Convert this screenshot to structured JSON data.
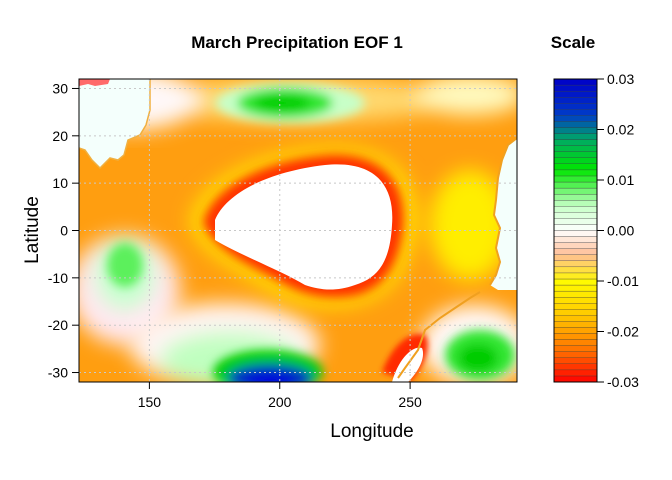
{
  "chart_data": [
    {
      "type": "heatmap",
      "title": "March Precipitation EOF 1",
      "xlabel": "Longitude",
      "ylabel": "Latitude",
      "xlim": [
        123,
        291
      ],
      "ylim": [
        -32,
        32
      ],
      "x_ticks": [
        150,
        200,
        250
      ],
      "y_ticks": [
        -30,
        -20,
        -10,
        0,
        10,
        20,
        30
      ],
      "grid": true,
      "field_features": [
        {
          "name": "strong negative core",
          "lon": 205,
          "lat": 3,
          "sign": "negative"
        },
        {
          "name": "positive band north",
          "lon": 215,
          "lat": 27,
          "sign": "positive"
        },
        {
          "name": "positive area southwest",
          "lon": 140,
          "lat": -10,
          "sign": "positive"
        },
        {
          "name": "strong positive core south",
          "lon": 200,
          "lat": -31,
          "sign": "positive"
        },
        {
          "name": "positive area southeast",
          "lon": 278,
          "lat": -26,
          "sign": "positive"
        }
      ]
    },
    {
      "type": "colorbar",
      "title": "Scale",
      "ticks": [
        "0.03",
        "0.02",
        "0.01",
        "0.00",
        "-0.01",
        "-0.02",
        "-0.03"
      ],
      "range": [
        -0.03,
        0.03
      ]
    }
  ]
}
